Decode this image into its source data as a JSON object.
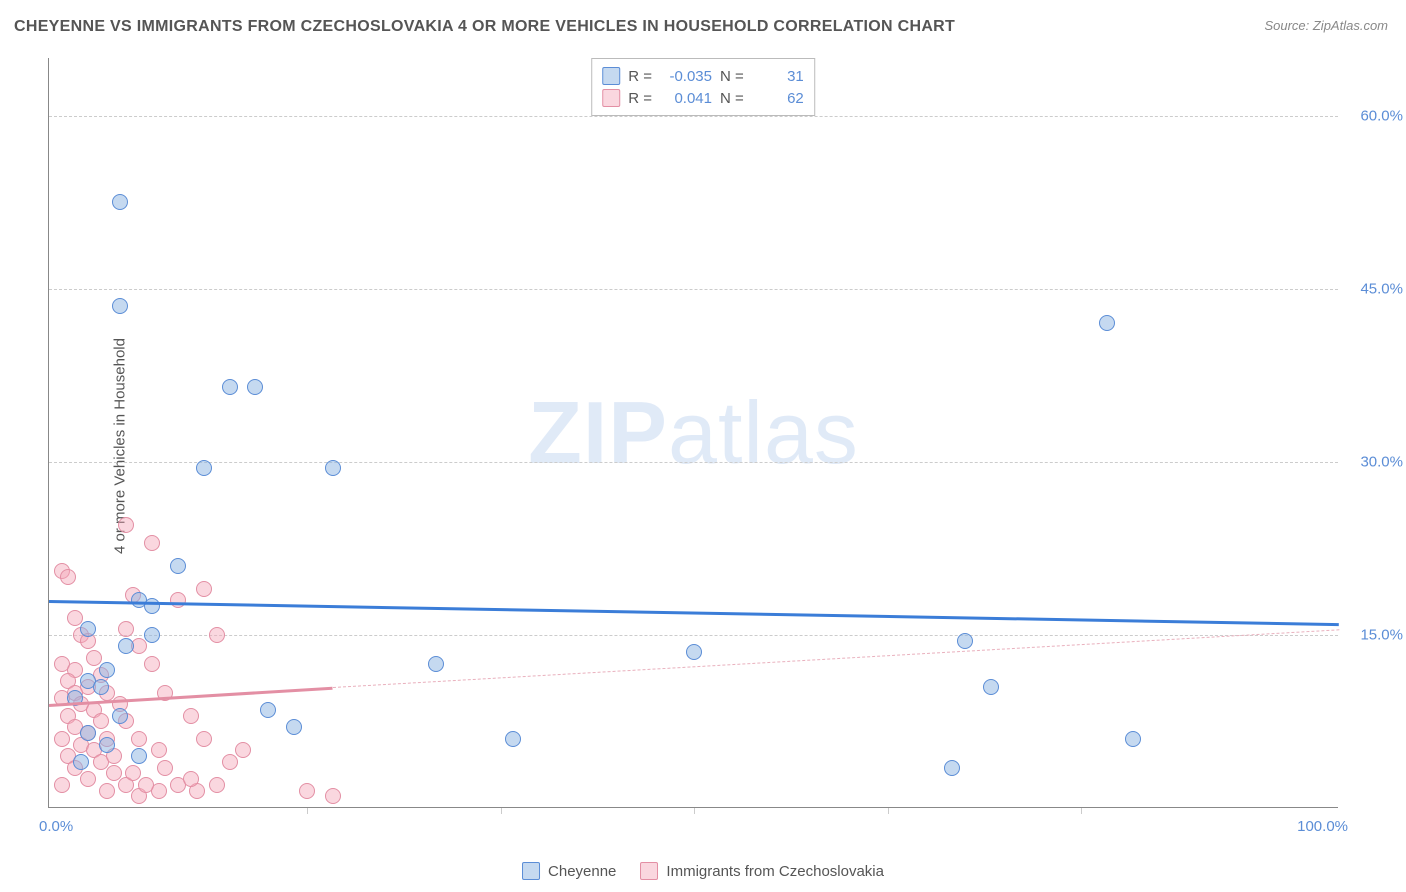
{
  "title": "CHEYENNE VS IMMIGRANTS FROM CZECHOSLOVAKIA 4 OR MORE VEHICLES IN HOUSEHOLD CORRELATION CHART",
  "source": "Source: ZipAtlas.com",
  "y_axis_label": "4 or more Vehicles in Household",
  "watermark_bold": "ZIP",
  "watermark_light": "atlas",
  "chart": {
    "type": "scatter",
    "xlim": [
      0,
      100
    ],
    "ylim": [
      0,
      65
    ],
    "y_ticks": [
      15,
      30,
      45,
      60
    ],
    "y_tick_labels": [
      "15.0%",
      "30.0%",
      "45.0%",
      "60.0%"
    ],
    "x_tick_positions": [
      20,
      35,
      50,
      65,
      80
    ],
    "x_tick_left": "0.0%",
    "x_tick_right": "100.0%",
    "background_color": "#ffffff",
    "grid_color": "#cccccc",
    "axis_color": "#888888",
    "marker_size": 16,
    "series": [
      {
        "name": "Cheyenne",
        "color_fill": "rgba(139,179,225,0.5)",
        "color_stroke": "#5b8dd6",
        "trend_color": "#3b7dd8",
        "r_value": "-0.035",
        "n_value": "31",
        "trend_x0": 0,
        "trend_y0": 18.0,
        "trend_x1": 100,
        "trend_y1": 16.0,
        "points": [
          [
            5.5,
            52.5
          ],
          [
            5.5,
            43.5
          ],
          [
            14,
            36.5
          ],
          [
            16,
            36.5
          ],
          [
            12,
            29.5
          ],
          [
            22,
            29.5
          ],
          [
            10,
            21.0
          ],
          [
            7,
            18.0
          ],
          [
            8,
            17.5
          ],
          [
            3,
            15.5
          ],
          [
            4.5,
            12.0
          ],
          [
            3,
            11.0
          ],
          [
            4,
            10.5
          ],
          [
            2,
            9.5
          ],
          [
            5.5,
            8.0
          ],
          [
            3,
            6.5
          ],
          [
            4.5,
            5.5
          ],
          [
            7,
            4.5
          ],
          [
            2.5,
            4.0
          ],
          [
            6,
            14.0
          ],
          [
            8,
            15.0
          ],
          [
            17,
            8.5
          ],
          [
            19,
            7.0
          ],
          [
            30,
            12.5
          ],
          [
            36,
            6.0
          ],
          [
            50,
            13.5
          ],
          [
            70,
            3.5
          ],
          [
            71,
            14.5
          ],
          [
            73,
            10.5
          ],
          [
            82,
            42.0
          ],
          [
            84,
            6.0
          ]
        ]
      },
      {
        "name": "Immigrants from Czechoslovakia",
        "color_fill": "rgba(244,166,185,0.45)",
        "color_stroke": "#e38fa4",
        "trend_color": "#e38fa4",
        "r_value": "0.041",
        "n_value": "62",
        "trend_x0": 0,
        "trend_y0": 9.0,
        "trend_x1_solid": 22,
        "trend_y1_solid": 10.5,
        "trend_x1": 100,
        "trend_y1": 15.5,
        "points": [
          [
            1,
            20.5
          ],
          [
            1.5,
            20.0
          ],
          [
            2,
            16.5
          ],
          [
            2.5,
            15.0
          ],
          [
            3,
            14.5
          ],
          [
            3.5,
            13.0
          ],
          [
            1,
            12.5
          ],
          [
            2,
            12.0
          ],
          [
            4,
            11.5
          ],
          [
            1.5,
            11.0
          ],
          [
            3,
            10.5
          ],
          [
            2,
            10.0
          ],
          [
            4.5,
            10.0
          ],
          [
            1,
            9.5
          ],
          [
            2.5,
            9.0
          ],
          [
            3.5,
            8.5
          ],
          [
            1.5,
            8.0
          ],
          [
            4,
            7.5
          ],
          [
            2,
            7.0
          ],
          [
            3,
            6.5
          ],
          [
            1,
            6.0
          ],
          [
            4.5,
            6.0
          ],
          [
            2.5,
            5.5
          ],
          [
            3.5,
            5.0
          ],
          [
            1.5,
            4.5
          ],
          [
            4,
            4.0
          ],
          [
            2,
            3.5
          ],
          [
            5,
            3.0
          ],
          [
            3,
            2.5
          ],
          [
            1,
            2.0
          ],
          [
            6,
            2.0
          ],
          [
            4.5,
            1.5
          ],
          [
            7,
            1.0
          ],
          [
            8.5,
            1.5
          ],
          [
            10,
            2.0
          ],
          [
            11.5,
            1.5
          ],
          [
            6,
            24.5
          ],
          [
            8,
            23.0
          ],
          [
            6.5,
            18.5
          ],
          [
            6,
            15.5
          ],
          [
            7,
            14.0
          ],
          [
            8,
            12.5
          ],
          [
            9,
            10.0
          ],
          [
            5.5,
            9.0
          ],
          [
            6,
            7.5
          ],
          [
            7,
            6.0
          ],
          [
            8.5,
            5.0
          ],
          [
            10,
            18.0
          ],
          [
            12,
            19.0
          ],
          [
            13,
            15.0
          ],
          [
            11,
            8.0
          ],
          [
            12,
            6.0
          ],
          [
            14,
            4.0
          ],
          [
            9,
            3.5
          ],
          [
            11,
            2.5
          ],
          [
            13,
            2.0
          ],
          [
            15,
            5.0
          ],
          [
            20,
            1.5
          ],
          [
            22,
            1.0
          ],
          [
            5,
            4.5
          ],
          [
            6.5,
            3.0
          ],
          [
            7.5,
            2.0
          ]
        ]
      }
    ]
  },
  "legend_top": {
    "r_label": "R =",
    "n_label": "N ="
  },
  "legend_bottom": {
    "series1": "Cheyenne",
    "series2": "Immigrants from Czechoslovakia"
  }
}
